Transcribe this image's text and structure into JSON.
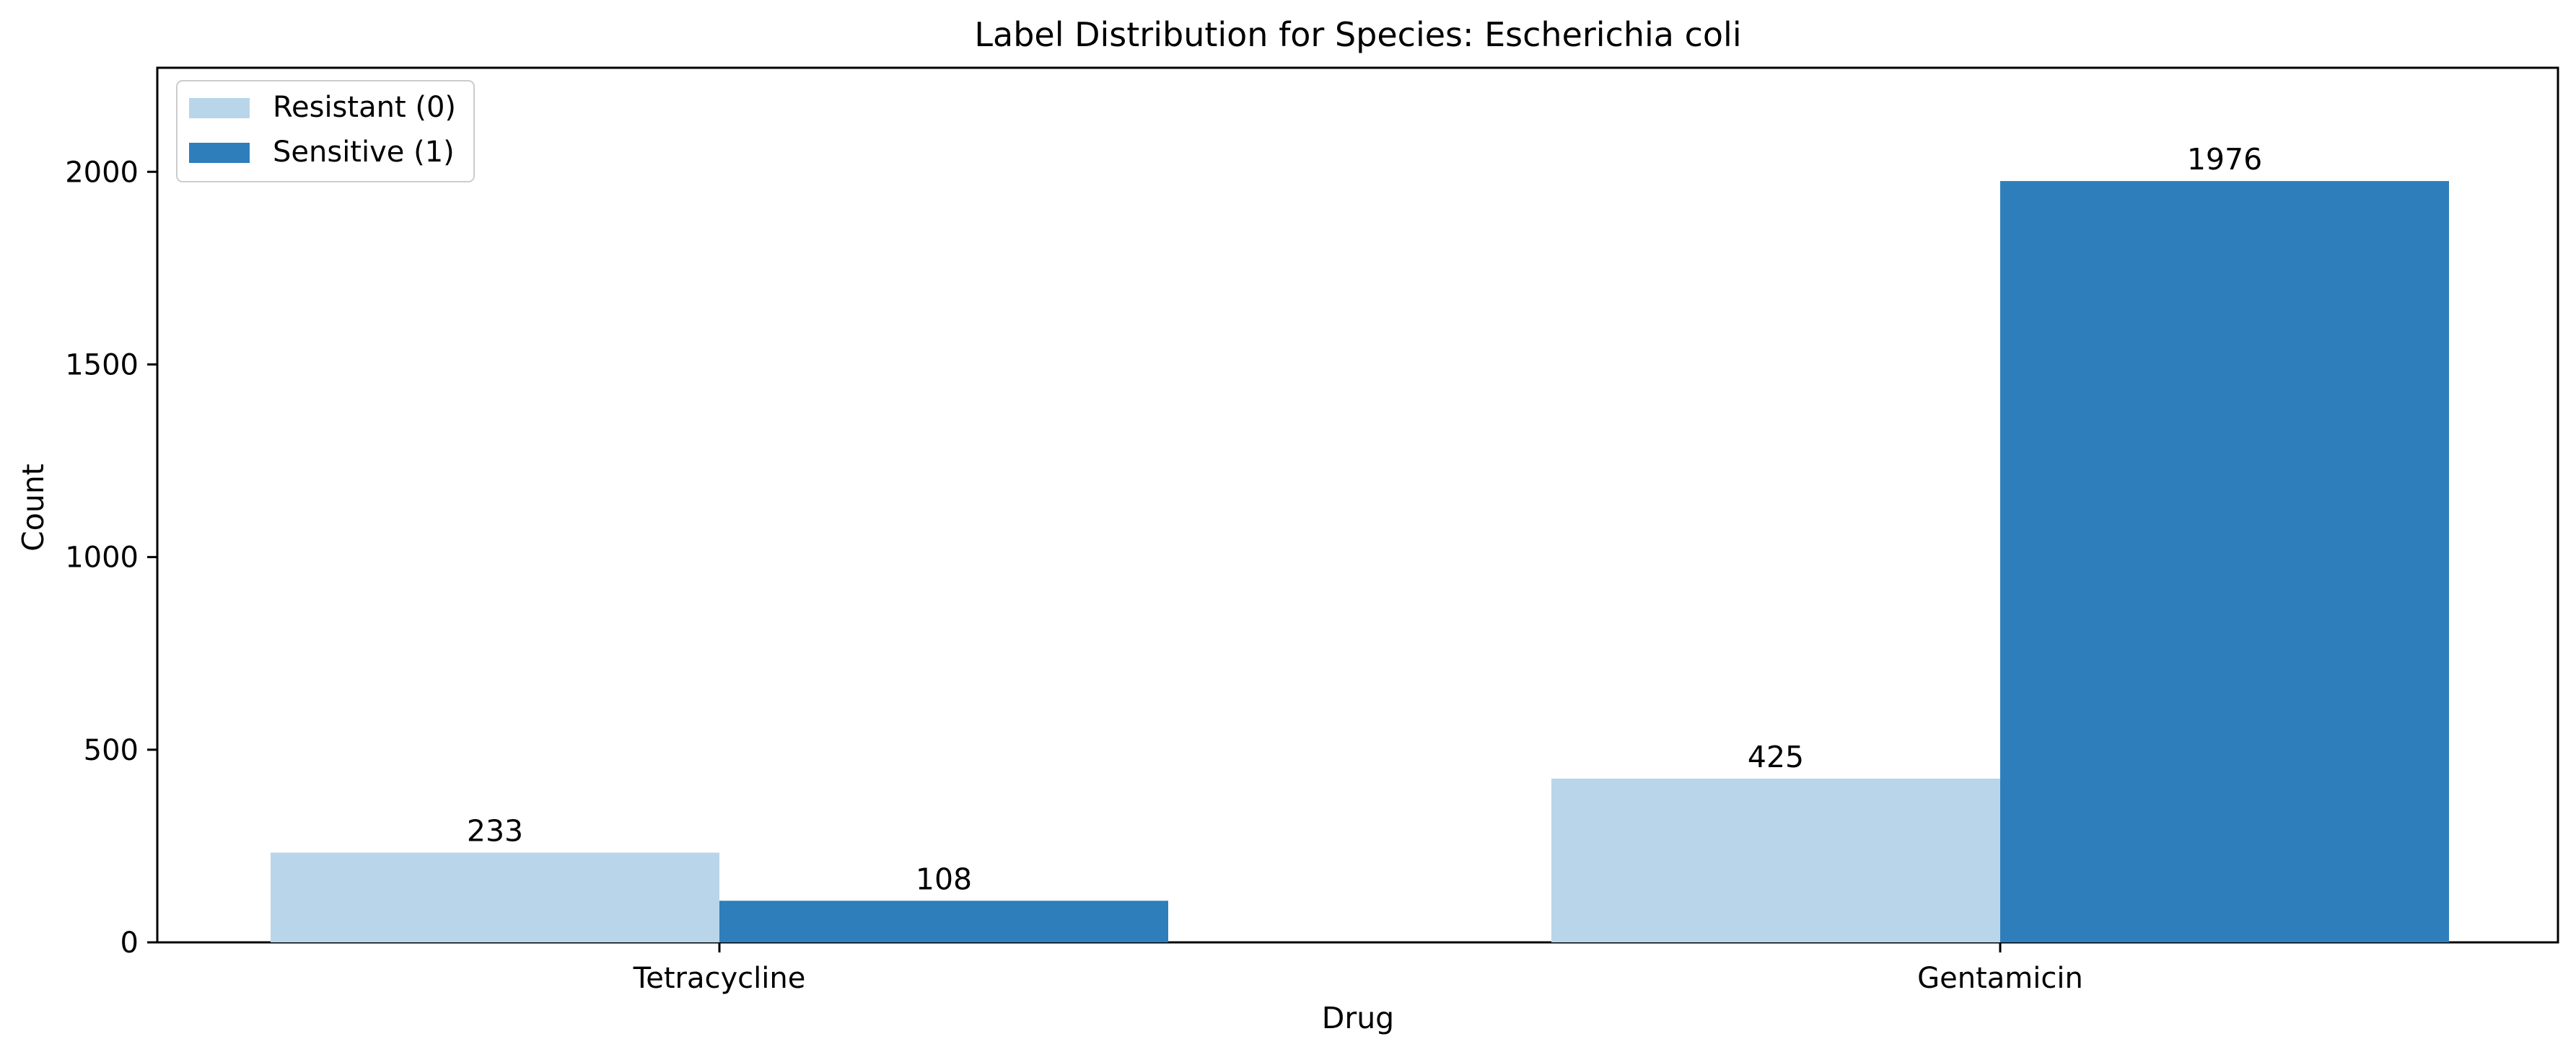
{
  "chart_data": {
    "type": "bar",
    "title": "Label Distribution for Species: Escherichia coli",
    "xlabel": "Drug",
    "ylabel": "Count",
    "categories": [
      "Tetracycline",
      "Gentamicin"
    ],
    "series": [
      {
        "name": "Resistant (0)",
        "values": [
          233,
          425
        ],
        "color": "#b9d5ea"
      },
      {
        "name": "Sensitive (1)",
        "values": [
          108,
          1976
        ],
        "color": "#2e7ebc"
      }
    ],
    "ylim": [
      0,
      2270
    ],
    "yticks": [
      0,
      500,
      1000,
      1500,
      2000
    ],
    "grid": false,
    "legend": "upper-left",
    "data_labels": true
  }
}
